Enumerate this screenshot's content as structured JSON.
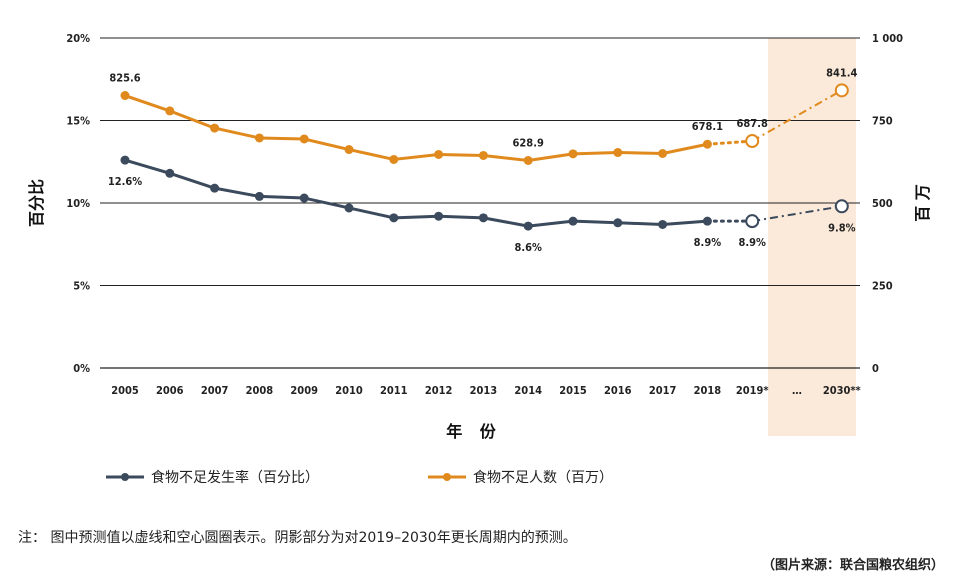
{
  "chart_data": {
    "type": "line",
    "categories": [
      "2005",
      "2006",
      "2007",
      "2008",
      "2009",
      "2010",
      "2011",
      "2012",
      "2013",
      "2014",
      "2015",
      "2016",
      "2017",
      "2018",
      "2019*",
      "…",
      "2030**"
    ],
    "xlabel": "年 份",
    "ylabel_left": "百分比",
    "ylabel_right": "百 万",
    "y_left_ticks": [
      "20%",
      "15%",
      "10%",
      "5%",
      "0%"
    ],
    "y_right_ticks": [
      "1 000",
      "750",
      "500",
      "250",
      "0"
    ],
    "ylim_left": [
      0,
      20
    ],
    "ylim_right": [
      0,
      1000
    ],
    "grid": true,
    "shaded_projection_range": [
      "2019*",
      "2030**"
    ],
    "legend_position": "bottom-left",
    "series": [
      {
        "name": "食物不足发生率（百分比）",
        "axis": "left",
        "color": "#3b4a5c",
        "values": [
          12.6,
          11.8,
          10.9,
          10.4,
          10.3,
          9.7,
          9.1,
          9.2,
          9.1,
          8.6,
          8.9,
          8.8,
          8.7,
          8.9,
          8.9,
          null,
          9.8
        ],
        "labels": [
          {
            "index": 0,
            "text": "12.6%",
            "pos": "below"
          },
          {
            "index": 9,
            "text": "8.6%",
            "pos": "below"
          },
          {
            "index": 13,
            "text": "8.9%",
            "pos": "below"
          },
          {
            "index": 14,
            "text": "8.9%",
            "pos": "below"
          },
          {
            "index": 16,
            "text": "9.8%",
            "pos": "below"
          }
        ]
      },
      {
        "name": "食物不足人数（百万）",
        "axis": "right",
        "color": "#e08a1e",
        "values": [
          825.6,
          779,
          727,
          697,
          694,
          662,
          632,
          647,
          644,
          628.9,
          649,
          653,
          650,
          678.1,
          687.8,
          null,
          841.4
        ],
        "labels": [
          {
            "index": 0,
            "text": "825.6",
            "pos": "above"
          },
          {
            "index": 9,
            "text": "628.9",
            "pos": "above"
          },
          {
            "index": 13,
            "text": "678.1",
            "pos": "above"
          },
          {
            "index": 14,
            "text": "687.8",
            "pos": "above"
          },
          {
            "index": 16,
            "text": "841.4",
            "pos": "above"
          }
        ]
      }
    ]
  },
  "note": "注：  图中预测值以虚线和空心圆圈表示。阴影部分为对2019–2030年更长周期内的预测。",
  "source": "（图片来源：联合国粮农组织）"
}
